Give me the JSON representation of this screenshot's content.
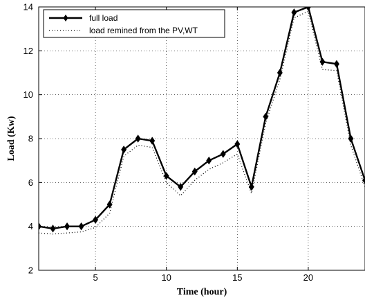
{
  "chart_data": {
    "type": "line",
    "title": "",
    "xlabel": "Time (hour)",
    "ylabel": "Load (Kw)",
    "xlim": [
      1,
      24
    ],
    "ylim": [
      2,
      14
    ],
    "x_ticks": [
      5,
      10,
      15,
      20
    ],
    "y_ticks": [
      2,
      4,
      6,
      8,
      10,
      12,
      14
    ],
    "grid": true,
    "legend_position": "top-left",
    "x": [
      1,
      2,
      3,
      4,
      5,
      6,
      7,
      8,
      9,
      10,
      11,
      12,
      13,
      14,
      15,
      16,
      17,
      18,
      19,
      20,
      21,
      22,
      23,
      24
    ],
    "series": [
      {
        "name": "full load",
        "style": "solid-diamond",
        "color": "#000000",
        "values": [
          4.0,
          3.9,
          4.0,
          4.0,
          4.3,
          5.0,
          7.5,
          8.0,
          7.9,
          6.3,
          5.8,
          6.5,
          7.0,
          7.3,
          7.75,
          5.8,
          9.0,
          11.0,
          13.75,
          14.0,
          11.5,
          11.4,
          8.0,
          6.1
        ]
      },
      {
        "name": "load remined from the PV,WT",
        "style": "dotted",
        "color": "#000000",
        "values": [
          3.7,
          3.65,
          3.7,
          3.75,
          3.95,
          4.6,
          7.2,
          7.7,
          7.6,
          6.0,
          5.4,
          6.1,
          6.6,
          6.9,
          7.3,
          5.5,
          8.7,
          10.7,
          13.5,
          13.8,
          11.15,
          11.1,
          7.7,
          5.8
        ]
      }
    ]
  }
}
